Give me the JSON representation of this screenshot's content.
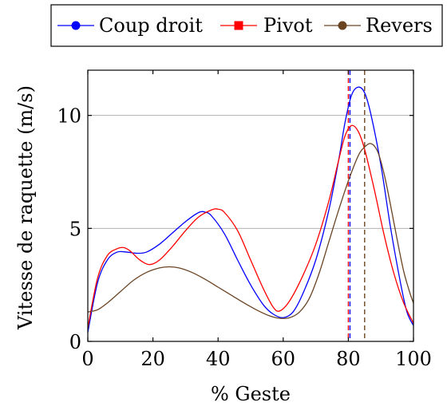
{
  "chart_data": {
    "type": "line",
    "xlabel": "% Geste",
    "ylabel": "Vitesse de raquette (m/s)",
    "xlim": [
      0,
      100
    ],
    "ylim": [
      0,
      12
    ],
    "xticks": [
      0,
      20,
      40,
      60,
      80,
      100
    ],
    "yticks": [
      0,
      5,
      10
    ],
    "grid": "horizontal",
    "legend": "top",
    "series": [
      {
        "name": "Coup droit",
        "color": "#0000ff",
        "marker": "circle",
        "peak_x": 80.5,
        "points": [
          [
            0,
            0.4
          ],
          [
            3,
            2.6
          ],
          [
            6,
            3.6
          ],
          [
            9,
            3.95
          ],
          [
            12,
            3.95
          ],
          [
            15,
            3.9
          ],
          [
            18,
            3.95
          ],
          [
            22,
            4.3
          ],
          [
            26,
            4.8
          ],
          [
            30,
            5.3
          ],
          [
            34,
            5.7
          ],
          [
            36,
            5.72
          ],
          [
            38,
            5.55
          ],
          [
            42,
            4.75
          ],
          [
            46,
            3.6
          ],
          [
            50,
            2.5
          ],
          [
            54,
            1.6
          ],
          [
            57,
            1.2
          ],
          [
            60,
            1.05
          ],
          [
            63,
            1.3
          ],
          [
            66,
            2.1
          ],
          [
            70,
            3.6
          ],
          [
            74,
            5.8
          ],
          [
            77,
            8.0
          ],
          [
            79,
            9.7
          ],
          [
            81,
            10.9
          ],
          [
            83,
            11.25
          ],
          [
            85,
            11.0
          ],
          [
            87,
            10.0
          ],
          [
            90,
            7.8
          ],
          [
            93,
            5.0
          ],
          [
            96,
            2.6
          ],
          [
            98,
            1.3
          ],
          [
            100,
            0.7
          ]
        ]
      },
      {
        "name": "Pivot",
        "color": "#ff0000",
        "marker": "square",
        "peak_x": 80,
        "points": [
          [
            0,
            0.6
          ],
          [
            3,
            2.8
          ],
          [
            6,
            3.8
          ],
          [
            9,
            4.1
          ],
          [
            11,
            4.15
          ],
          [
            13,
            4.0
          ],
          [
            16,
            3.6
          ],
          [
            19,
            3.4
          ],
          [
            22,
            3.6
          ],
          [
            26,
            4.2
          ],
          [
            30,
            4.9
          ],
          [
            34,
            5.5
          ],
          [
            38,
            5.82
          ],
          [
            40,
            5.85
          ],
          [
            42,
            5.7
          ],
          [
            46,
            4.9
          ],
          [
            50,
            3.6
          ],
          [
            54,
            2.3
          ],
          [
            57,
            1.5
          ],
          [
            59,
            1.35
          ],
          [
            62,
            1.8
          ],
          [
            66,
            2.9
          ],
          [
            70,
            4.3
          ],
          [
            74,
            6.2
          ],
          [
            77,
            8.0
          ],
          [
            79,
            9.1
          ],
          [
            81,
            9.55
          ],
          [
            83,
            9.3
          ],
          [
            85,
            8.5
          ],
          [
            88,
            6.7
          ],
          [
            91,
            4.7
          ],
          [
            94,
            3.0
          ],
          [
            97,
            1.7
          ],
          [
            100,
            0.8
          ]
        ]
      },
      {
        "name": "Revers",
        "color": "#6b4423",
        "marker": "circle",
        "peak_x": 85,
        "points": [
          [
            0,
            1.3
          ],
          [
            3,
            1.4
          ],
          [
            6,
            1.7
          ],
          [
            10,
            2.2
          ],
          [
            14,
            2.7
          ],
          [
            18,
            3.05
          ],
          [
            22,
            3.25
          ],
          [
            25,
            3.3
          ],
          [
            28,
            3.25
          ],
          [
            32,
            3.05
          ],
          [
            36,
            2.75
          ],
          [
            40,
            2.4
          ],
          [
            44,
            2.05
          ],
          [
            48,
            1.7
          ],
          [
            52,
            1.38
          ],
          [
            56,
            1.12
          ],
          [
            59,
            1.02
          ],
          [
            62,
            1.05
          ],
          [
            65,
            1.3
          ],
          [
            68,
            1.9
          ],
          [
            71,
            3.0
          ],
          [
            74,
            4.4
          ],
          [
            77,
            5.8
          ],
          [
            80,
            7.1
          ],
          [
            83,
            8.2
          ],
          [
            85,
            8.6
          ],
          [
            87,
            8.75
          ],
          [
            89,
            8.4
          ],
          [
            91,
            7.4
          ],
          [
            93,
            6.0
          ],
          [
            95,
            4.5
          ],
          [
            97,
            3.1
          ],
          [
            99,
            2.1
          ],
          [
            100,
            1.7
          ]
        ]
      }
    ]
  }
}
